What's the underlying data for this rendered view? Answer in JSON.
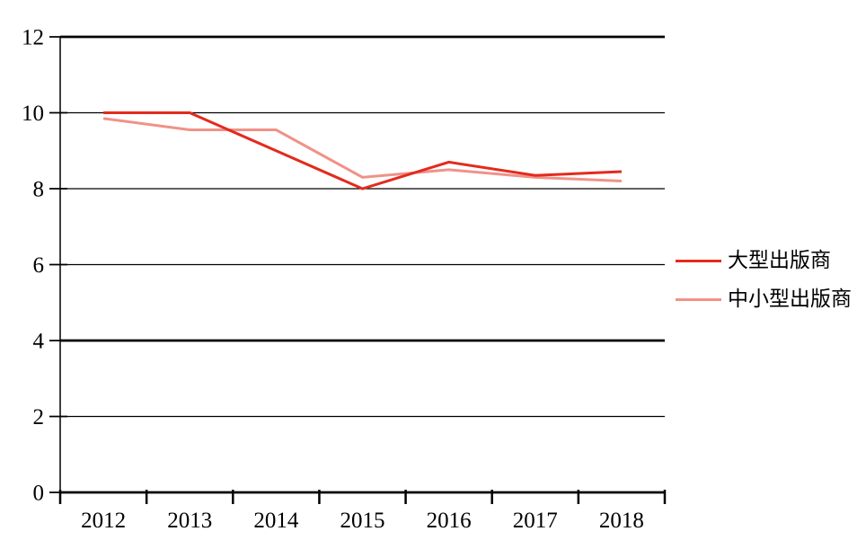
{
  "chart_data": {
    "type": "line",
    "title": "",
    "categories": [
      "2012",
      "2013",
      "2014",
      "2015",
      "2016",
      "2017",
      "2018"
    ],
    "series": [
      {
        "name": "大型出版商",
        "color": "#e22b1d",
        "values": [
          10,
          10,
          9,
          8,
          8.7,
          8.35,
          8.45
        ]
      },
      {
        "name": "中小型出版商",
        "color": "#f09288",
        "values": [
          9.85,
          9.55,
          9.55,
          8.3,
          8.5,
          8.3,
          8.2
        ]
      }
    ],
    "x_axis": {
      "tick_labels": [
        "2012",
        "2013",
        "2014",
        "2015",
        "2016",
        "2017",
        "2018"
      ]
    },
    "y_axis": {
      "min": 0,
      "max": 12,
      "tick_interval": 2,
      "tick_labels": [
        "0",
        "2",
        "4",
        "6",
        "8",
        "10",
        "12"
      ],
      "emphasized_gridlines": [
        12,
        4,
        0
      ]
    },
    "grid": true,
    "legend": {
      "position": "right",
      "entries": [
        "大型出版商",
        "中小型出版商"
      ]
    },
    "colors": {
      "background": "#ffffff",
      "axis": "#000000",
      "text": "#000000"
    }
  }
}
